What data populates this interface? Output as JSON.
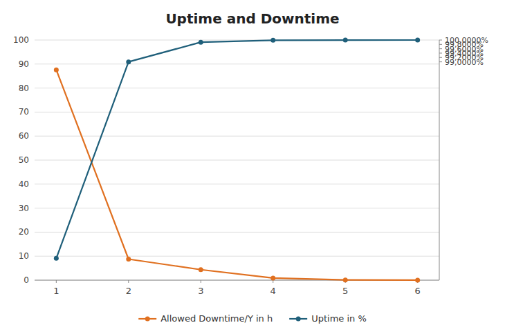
{
  "chart_data": {
    "type": "line",
    "title": "Uptime and Downtime",
    "x": [
      1,
      2,
      3,
      4,
      5,
      6
    ],
    "xlim": [
      0.7,
      6.3
    ],
    "xticks": [
      1,
      2,
      3,
      4,
      5,
      6
    ],
    "ylim": [
      0,
      100
    ],
    "yticks": [
      0,
      10,
      20,
      30,
      40,
      50,
      60,
      70,
      80,
      90,
      100
    ],
    "y2lim": [
      89.0,
      100.0
    ],
    "y2ticks": [
      {
        "value": 99.0,
        "label": "99,0000%"
      },
      {
        "value": 99.2,
        "label": "99,2000%"
      },
      {
        "value": 99.4,
        "label": "99,4000%"
      },
      {
        "value": 99.6,
        "label": "99,6000%"
      },
      {
        "value": 99.8,
        "label": "99,8000%"
      },
      {
        "value": 100.0,
        "label": "100,0000%"
      }
    ],
    "grid": true,
    "legend": "bottom",
    "series": [
      {
        "name": "Allowed Downtime/Y in h",
        "color": "#e07020",
        "marker": "circle",
        "values": [
          87.6,
          8.76,
          4.38,
          0.876,
          0.0876,
          0.00876
        ]
      },
      {
        "name": "Uptime in %",
        "color": "#1f5f7a",
        "marker": "circle",
        "axis": "y2",
        "values": [
          90.0,
          99.0,
          99.9,
          99.99,
          99.999,
          99.9999
        ]
      }
    ]
  }
}
